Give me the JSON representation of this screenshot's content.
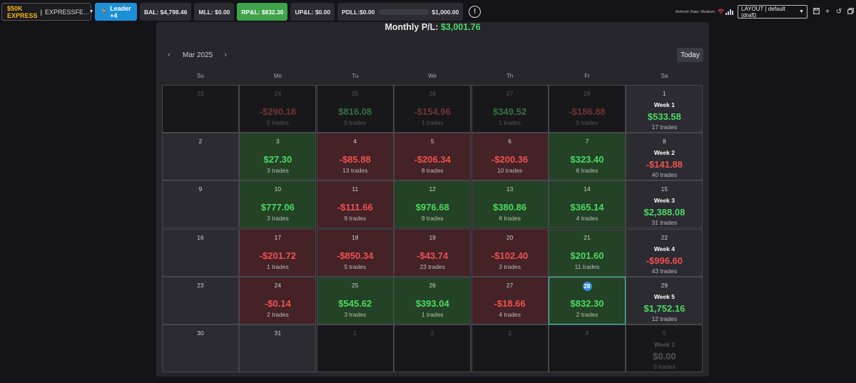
{
  "toolbar": {
    "account_name": "$50K EXPRESS",
    "account_separator": "|",
    "account_id": "EXPRESSFE...",
    "leader_label": "Leader +4",
    "bal": "BAL: $4,798.46",
    "mll": "MLL: $0.00",
    "rpl": "RP&L: $832.30",
    "upl": "UP&L: $0.00",
    "pdll": "PDLL:$0.00",
    "pdll_limit": "$1,000.00",
    "info_symbol": "!",
    "refresh_rate": "Refresh Rate: Medium",
    "layout_value": "LAYOUT | default (draft)"
  },
  "calendar": {
    "title_label": "Monthly P/L:",
    "title_value": "$3,001.76",
    "month": "Mar 2025",
    "prev_symbol": "‹",
    "next_symbol": "›",
    "today_label": "Today",
    "weekdays": [
      "Su",
      "Mo",
      "Tu",
      "We",
      "Th",
      "Fr",
      "Sa"
    ],
    "weeks": [
      {
        "days": [
          {
            "num": "23",
            "kind": "other"
          },
          {
            "num": "24",
            "kind": "other",
            "pnl": "-$290.18",
            "sign": "n",
            "trades": "5 trades"
          },
          {
            "num": "25",
            "kind": "other",
            "pnl": "$816.08",
            "sign": "p",
            "trades": "5 trades"
          },
          {
            "num": "26",
            "kind": "other",
            "pnl": "-$154.96",
            "sign": "n",
            "trades": "1 trades"
          },
          {
            "num": "27",
            "kind": "other",
            "pnl": "$349.52",
            "sign": "p",
            "trades": "1 trades"
          },
          {
            "num": "28",
            "kind": "other",
            "pnl": "-$186.88",
            "sign": "n",
            "trades": "5 trades"
          }
        ],
        "summary": {
          "num": "1",
          "label": "Week 1",
          "pnl": "$533.58",
          "sign": "p",
          "trades": "17 trades",
          "kind": "wk"
        }
      },
      {
        "days": [
          {
            "num": "2",
            "kind": "none"
          },
          {
            "num": "3",
            "kind": "pos",
            "pnl": "$27.30",
            "sign": "p",
            "trades": "3 trades"
          },
          {
            "num": "4",
            "kind": "neg",
            "pnl": "-$85.88",
            "sign": "n",
            "trades": "13 trades"
          },
          {
            "num": "5",
            "kind": "neg",
            "pnl": "-$206.34",
            "sign": "n",
            "trades": "8 trades"
          },
          {
            "num": "6",
            "kind": "neg",
            "pnl": "-$200.36",
            "sign": "n",
            "trades": "10 trades"
          },
          {
            "num": "7",
            "kind": "pos",
            "pnl": "$323.40",
            "sign": "p",
            "trades": "6 trades"
          }
        ],
        "summary": {
          "num": "8",
          "label": "Week 2",
          "pnl": "-$141.88",
          "sign": "n",
          "trades": "40 trades",
          "kind": "wk"
        }
      },
      {
        "days": [
          {
            "num": "9",
            "kind": "none"
          },
          {
            "num": "10",
            "kind": "pos",
            "pnl": "$777.06",
            "sign": "p",
            "trades": "3 trades"
          },
          {
            "num": "11",
            "kind": "neg",
            "pnl": "-$111.66",
            "sign": "n",
            "trades": "9 trades"
          },
          {
            "num": "12",
            "kind": "pos",
            "pnl": "$976.68",
            "sign": "p",
            "trades": "9 trades"
          },
          {
            "num": "13",
            "kind": "pos",
            "pnl": "$380.86",
            "sign": "p",
            "trades": "6 trades"
          },
          {
            "num": "14",
            "kind": "pos",
            "pnl": "$365.14",
            "sign": "p",
            "trades": "4 trades"
          }
        ],
        "summary": {
          "num": "15",
          "label": "Week 3",
          "pnl": "$2,388.08",
          "sign": "p",
          "trades": "31 trades",
          "kind": "wk"
        }
      },
      {
        "days": [
          {
            "num": "16",
            "kind": "none"
          },
          {
            "num": "17",
            "kind": "neg",
            "pnl": "-$201.72",
            "sign": "n",
            "trades": "1 trades"
          },
          {
            "num": "18",
            "kind": "neg",
            "pnl": "-$850.34",
            "sign": "n",
            "trades": "5 trades"
          },
          {
            "num": "19",
            "kind": "neg",
            "pnl": "-$43.74",
            "sign": "n",
            "trades": "23 trades"
          },
          {
            "num": "20",
            "kind": "neg",
            "pnl": "-$102.40",
            "sign": "n",
            "trades": "3 trades"
          },
          {
            "num": "21",
            "kind": "pos",
            "pnl": "$201.60",
            "sign": "p",
            "trades": "11 trades"
          }
        ],
        "summary": {
          "num": "22",
          "label": "Week 4",
          "pnl": "-$996.60",
          "sign": "n",
          "trades": "43 trades",
          "kind": "wk"
        }
      },
      {
        "days": [
          {
            "num": "23",
            "kind": "none"
          },
          {
            "num": "24",
            "kind": "neg",
            "pnl": "-$0.14",
            "sign": "n",
            "trades": "2 trades"
          },
          {
            "num": "25",
            "kind": "pos",
            "pnl": "$545.62",
            "sign": "p",
            "trades": "3 trades"
          },
          {
            "num": "26",
            "kind": "pos",
            "pnl": "$393.04",
            "sign": "p",
            "trades": "1 trades"
          },
          {
            "num": "27",
            "kind": "neg",
            "pnl": "-$18.66",
            "sign": "n",
            "trades": "4 trades"
          },
          {
            "num": "28",
            "kind": "pos",
            "pnl": "$832.30",
            "sign": "p",
            "trades": "2 trades",
            "today": true
          }
        ],
        "summary": {
          "num": "29",
          "label": "Week 5",
          "pnl": "$1,752.16",
          "sign": "p",
          "trades": "12 trades",
          "kind": "wk"
        }
      },
      {
        "days": [
          {
            "num": "30",
            "kind": "none"
          },
          {
            "num": "31",
            "kind": "none"
          },
          {
            "num": "1",
            "kind": "other"
          },
          {
            "num": "2",
            "kind": "other"
          },
          {
            "num": "3",
            "kind": "other"
          },
          {
            "num": "4",
            "kind": "other"
          }
        ],
        "summary": {
          "num": "5",
          "label": "Week 1",
          "pnl": "$0.00",
          "sign": "p",
          "trades": "0 trades",
          "kind": "wkother"
        }
      }
    ]
  },
  "colors": {
    "accent_blue": "#1d8fd6",
    "profit": "#4cd964",
    "loss": "#f05050",
    "brand_gold": "#f5b81c"
  }
}
